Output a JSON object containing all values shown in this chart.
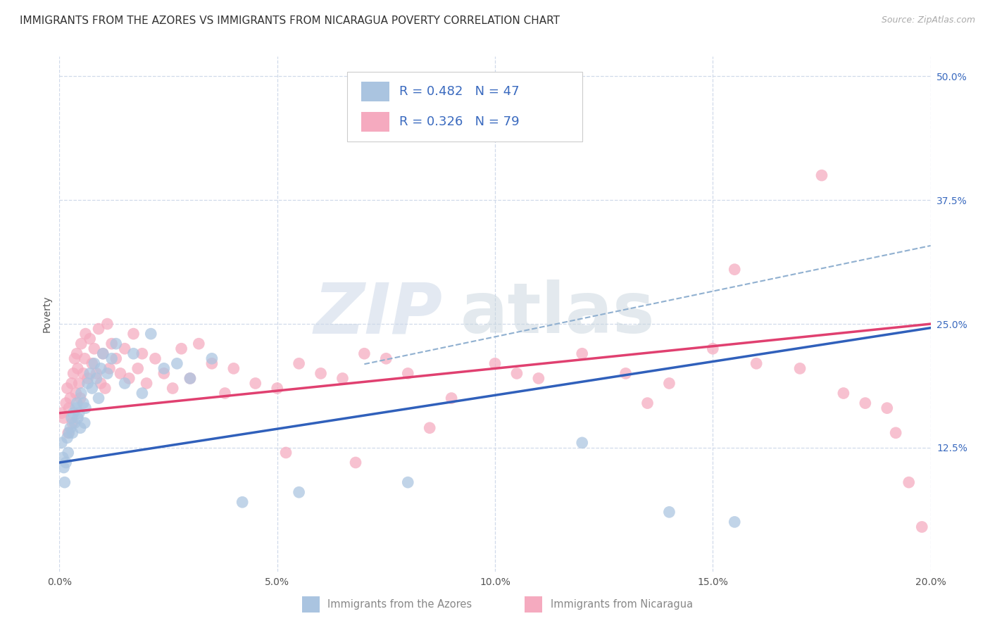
{
  "title": "IMMIGRANTS FROM THE AZORES VS IMMIGRANTS FROM NICARAGUA POVERTY CORRELATION CHART",
  "source": "Source: ZipAtlas.com",
  "xlim": [
    0.0,
    20.0
  ],
  "ylim": [
    0.0,
    52.0
  ],
  "ylabel_vals": [
    12.5,
    25.0,
    37.5,
    50.0
  ],
  "xlabel_vals": [
    0.0,
    5.0,
    10.0,
    15.0,
    20.0
  ],
  "R_azores": "0.482",
  "N_azores": "47",
  "R_nicaragua": "0.326",
  "N_nicaragua": "79",
  "azores_color": "#aac4e0",
  "nicaragua_color": "#f5aabf",
  "azores_line_color": "#3060bb",
  "nicaragua_line_color": "#e04070",
  "dashed_line_color": "#90b0d0",
  "grid_color": "#d0daea",
  "background_color": "#ffffff",
  "ylabel": "Poverty",
  "title_fontsize": 11,
  "tick_fontsize": 10,
  "legend_fontsize": 13,
  "azores_x": [
    0.05,
    0.08,
    0.1,
    0.12,
    0.15,
    0.18,
    0.2,
    0.22,
    0.25,
    0.28,
    0.3,
    0.32,
    0.35,
    0.38,
    0.4,
    0.42,
    0.45,
    0.48,
    0.5,
    0.55,
    0.58,
    0.6,
    0.65,
    0.7,
    0.75,
    0.8,
    0.85,
    0.9,
    0.95,
    1.0,
    1.1,
    1.2,
    1.3,
    1.5,
    1.7,
    1.9,
    2.1,
    2.4,
    2.7,
    3.0,
    3.5,
    4.2,
    5.5,
    8.0,
    12.0,
    14.0,
    15.5
  ],
  "azores_y": [
    13.0,
    11.5,
    10.5,
    9.0,
    11.0,
    13.5,
    12.0,
    14.0,
    14.5,
    15.5,
    14.0,
    16.0,
    15.0,
    16.5,
    17.0,
    15.5,
    16.0,
    14.5,
    18.0,
    17.0,
    15.0,
    16.5,
    19.0,
    20.0,
    18.5,
    21.0,
    19.5,
    17.5,
    20.5,
    22.0,
    20.0,
    21.5,
    23.0,
    19.0,
    22.0,
    18.0,
    24.0,
    20.5,
    21.0,
    19.5,
    21.5,
    7.0,
    8.0,
    9.0,
    13.0,
    6.0,
    5.0
  ],
  "nicaragua_x": [
    0.05,
    0.1,
    0.15,
    0.18,
    0.2,
    0.22,
    0.25,
    0.28,
    0.3,
    0.32,
    0.35,
    0.38,
    0.4,
    0.42,
    0.45,
    0.48,
    0.5,
    0.55,
    0.58,
    0.6,
    0.65,
    0.7,
    0.75,
    0.8,
    0.85,
    0.9,
    0.95,
    1.0,
    1.05,
    1.1,
    1.15,
    1.2,
    1.3,
    1.4,
    1.5,
    1.6,
    1.7,
    1.8,
    1.9,
    2.0,
    2.2,
    2.4,
    2.6,
    2.8,
    3.0,
    3.2,
    3.5,
    3.8,
    4.0,
    4.5,
    5.0,
    5.5,
    6.0,
    6.5,
    7.0,
    7.5,
    8.0,
    9.0,
    10.0,
    11.0,
    12.0,
    13.0,
    14.0,
    15.0,
    16.0,
    17.0,
    18.0,
    18.5,
    19.0,
    5.2,
    6.8,
    8.5,
    10.5,
    13.5,
    15.5,
    17.5,
    19.2,
    19.5,
    19.8
  ],
  "nicaragua_y": [
    16.0,
    15.5,
    17.0,
    18.5,
    14.0,
    16.5,
    17.5,
    19.0,
    15.0,
    20.0,
    21.5,
    18.0,
    22.0,
    20.5,
    19.0,
    17.5,
    23.0,
    20.0,
    21.5,
    24.0,
    19.5,
    23.5,
    21.0,
    22.5,
    20.0,
    24.5,
    19.0,
    22.0,
    18.5,
    25.0,
    20.5,
    23.0,
    21.5,
    20.0,
    22.5,
    19.5,
    24.0,
    20.5,
    22.0,
    19.0,
    21.5,
    20.0,
    18.5,
    22.5,
    19.5,
    23.0,
    21.0,
    18.0,
    20.5,
    19.0,
    18.5,
    21.0,
    20.0,
    19.5,
    22.0,
    21.5,
    20.0,
    17.5,
    21.0,
    19.5,
    22.0,
    20.0,
    19.0,
    22.5,
    21.0,
    20.5,
    18.0,
    17.0,
    16.5,
    12.0,
    11.0,
    14.5,
    20.0,
    17.0,
    30.5,
    40.0,
    14.0,
    9.0,
    4.5
  ]
}
